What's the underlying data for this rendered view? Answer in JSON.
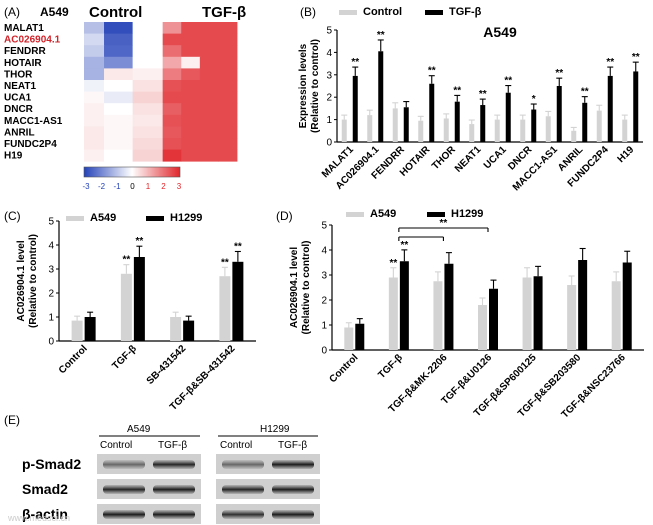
{
  "colors": {
    "control": "#d3d3d3",
    "treated": "#000000",
    "heat_high": "#e0262b",
    "heat_low": "#2442b8",
    "mid": "#ffffff",
    "lnc_highlight": "#d0242b",
    "watermark": "#cccccc"
  },
  "panel_labels": {
    "A": "(A)",
    "B": "(B)",
    "C": "(C)",
    "D": "(D)",
    "E": "(E)"
  },
  "heatmap": {
    "cell_label": "A549",
    "group_control": "Control",
    "group_tgf": "TGF-β",
    "rows": [
      "MALAT1",
      "AC026904.1",
      "FENDRR",
      "HOTAIR",
      "THOR",
      "NEAT1",
      "UCA1",
      "DNCR",
      "MACC1-AS1",
      "ANRIL",
      "FUNDC2P4",
      "H19"
    ],
    "highlight_row": "AC026904.1",
    "colorbar_ticks": [
      "-3",
      "-2",
      "-1",
      "0",
      "1",
      "2",
      "3"
    ],
    "values": [
      [
        -1.0,
        -2.8,
        0.0,
        1.5,
        2.5,
        2.5,
        2.5
      ],
      [
        -0.6,
        -2.5,
        0.0,
        2.5,
        2.5,
        2.5,
        2.5
      ],
      [
        -0.8,
        -2.4,
        0.0,
        2.0,
        2.5,
        2.5,
        2.5
      ],
      [
        -1.2,
        -1.8,
        0.0,
        1.2,
        0.2,
        2.5,
        2.5
      ],
      [
        -1.2,
        0.3,
        0.2,
        1.8,
        2.3,
        2.5,
        2.5
      ],
      [
        -0.2,
        0.0,
        0.4,
        2.4,
        2.5,
        2.5,
        2.5
      ],
      [
        0.1,
        -0.3,
        0.6,
        2.5,
        2.5,
        2.5,
        2.5
      ],
      [
        0.2,
        0.0,
        0.4,
        2.2,
        2.5,
        2.5,
        2.5
      ],
      [
        0.2,
        0.1,
        0.3,
        2.4,
        2.5,
        2.5,
        2.5
      ],
      [
        0.3,
        0.1,
        0.4,
        2.3,
        2.5,
        2.5,
        2.5
      ],
      [
        0.3,
        0.1,
        0.5,
        2.4,
        2.5,
        2.5,
        2.5
      ],
      [
        0.2,
        0.0,
        0.6,
        2.8,
        2.5,
        2.5,
        2.5
      ]
    ]
  },
  "chart_data": [
    {
      "panel": "B",
      "type": "bar",
      "title": "A549",
      "ylabel": "Expression levels (Relative to control)",
      "ylim": [
        0,
        5
      ],
      "yticks": [
        "0",
        "1",
        "2",
        "3",
        "4",
        "5"
      ],
      "legend": [
        "Control",
        "TGF-β"
      ],
      "categories": [
        "MALAT1",
        "AC026904.1",
        "FENDRR",
        "HOTAIR",
        "THOR",
        "NEAT1",
        "UCA1",
        "DNCR",
        "MACC1-AS1",
        "ANRIL",
        "FUNDC2P4",
        "H19"
      ],
      "series": [
        {
          "name": "Control",
          "values": [
            1.0,
            1.2,
            1.5,
            0.95,
            1.05,
            0.8,
            1.0,
            1.0,
            1.15,
            0.5,
            1.4,
            1.0
          ]
        },
        {
          "name": "TGF-β",
          "values": [
            2.95,
            4.05,
            1.55,
            2.6,
            1.8,
            1.65,
            2.2,
            1.45,
            2.5,
            1.75,
            2.95,
            3.15
          ]
        }
      ],
      "significance": [
        "**",
        "**",
        "",
        "**",
        "**",
        "**",
        "**",
        "*",
        "**",
        "**",
        "**",
        "**"
      ]
    },
    {
      "panel": "C",
      "type": "bar",
      "ylabel": "AC026904.1 level (Relative to control)",
      "ylim": [
        0,
        5
      ],
      "yticks": [
        "0",
        "1",
        "2",
        "3",
        "4",
        "5"
      ],
      "legend": [
        "A549",
        "H1299"
      ],
      "categories": [
        "Control",
        "TGF-β",
        "SB-431542",
        "TGF-β&SB-431542"
      ],
      "series": [
        {
          "name": "A549",
          "values": [
            0.85,
            2.8,
            1.0,
            2.7
          ]
        },
        {
          "name": "H1299",
          "values": [
            1.0,
            3.5,
            0.85,
            3.3
          ]
        }
      ],
      "significance": [
        [
          "",
          ""
        ],
        [
          "**",
          "**"
        ],
        [
          "",
          ""
        ],
        [
          "**",
          "**"
        ]
      ]
    },
    {
      "panel": "D",
      "type": "bar",
      "ylabel": "AC026904.1 level (Relative to control)",
      "ylim": [
        0,
        5
      ],
      "yticks": [
        "0",
        "1",
        "2",
        "3",
        "4",
        "5"
      ],
      "legend": [
        "A549",
        "H1299"
      ],
      "categories": [
        "Control",
        "TGF-β",
        "TGF-β&MK-2206",
        "TGF-β&U0126",
        "TGF-β&SP600125",
        "TGF-β&SB203580",
        "TGF-β&NSC23766"
      ],
      "series": [
        {
          "name": "A549",
          "values": [
            0.9,
            2.9,
            2.75,
            1.8,
            2.9,
            2.6,
            2.75
          ]
        },
        {
          "name": "H1299",
          "values": [
            1.05,
            3.55,
            3.45,
            2.45,
            2.95,
            3.6,
            3.5
          ]
        }
      ],
      "significance": [
        [
          "",
          ""
        ],
        [
          "**",
          "**"
        ],
        [
          "",
          ""
        ],
        [
          "",
          ""
        ],
        [
          "",
          ""
        ],
        [
          "",
          ""
        ],
        [
          "",
          ""
        ]
      ],
      "bracket_label": "**"
    }
  ],
  "blot": {
    "cell_a": "A549",
    "cell_b": "H1299",
    "lane_labels": [
      "Control",
      "TGF-β",
      "Control",
      "TGF-β"
    ],
    "rows": [
      "p-Smad2",
      "Smad2",
      "β-actin"
    ]
  },
  "watermark": "www.medsci.cn"
}
